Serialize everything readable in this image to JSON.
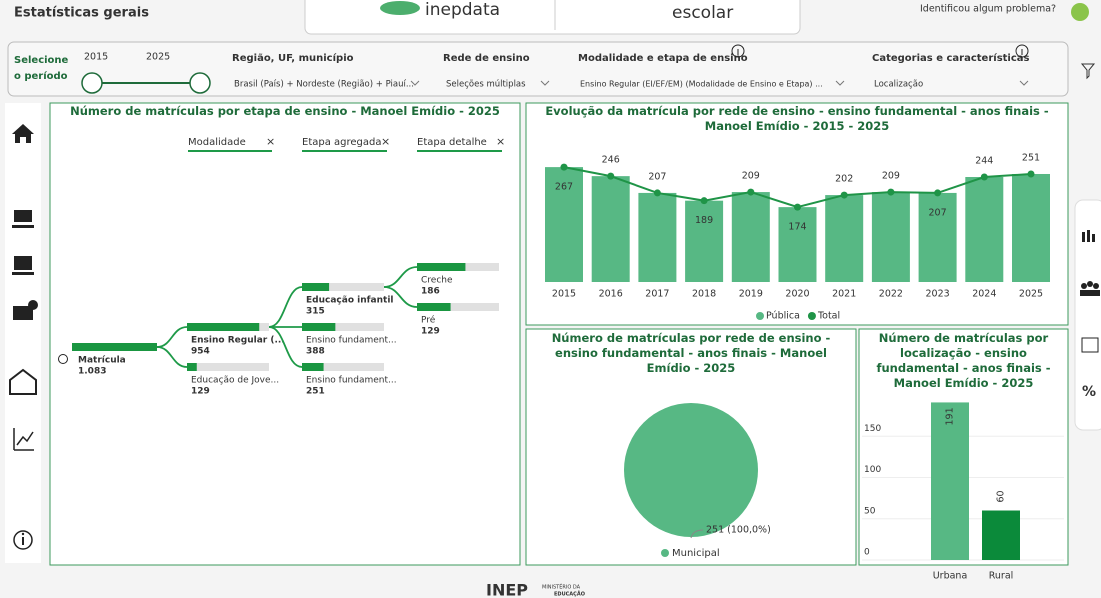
{
  "header": {
    "title": "Estatísticas gerais",
    "logo_left": "inepdata",
    "logo_right": "escolar",
    "feedback": "Identificou algum problema?"
  },
  "filters": {
    "period_label": "Selecione o período",
    "period_start": "2015",
    "period_end": "2025",
    "region_label": "Região, UF, município",
    "region_value": "Brasil (País) + Nordeste (Região) + Piauí...",
    "network_label": "Rede de ensino",
    "network_value": "Seleções múltiplas",
    "stage_label": "Modalidade e etapa de ensino",
    "stage_value": "Ensino Regular (EI/EF/EM) (Modalidade de Ensino e Etapa) ...",
    "category_label": "Categorias e características",
    "category_value": "Localização"
  },
  "tree": {
    "title": "Número de matrículas por etapa de ensino - Manoel Emídio - 2025",
    "columns": [
      "Modalidade",
      "Etapa agregada",
      "Etapa detalhe"
    ],
    "nodes": [
      {
        "label": "Matrícula",
        "value": 1083,
        "value_label": "1.083"
      },
      {
        "label": "Ensino Regular (...",
        "value": 954,
        "parent": 0
      },
      {
        "label": "Educação de Jove...",
        "value": 129,
        "parent": 0
      },
      {
        "label": "Educação infantil",
        "value": 315,
        "parent": 1
      },
      {
        "label": "Ensino fundament...",
        "value": 388,
        "parent": 1
      },
      {
        "label": "Ensino fundament...",
        "value": 251,
        "parent": 1
      },
      {
        "label": "Creche",
        "value": 186,
        "parent": 3
      },
      {
        "label": "Pré",
        "value": 129,
        "parent": 3
      }
    ]
  },
  "chart_data": [
    {
      "type": "combo",
      "title": "Evolução da matrícula por rede de ensino - ensino fundamental - anos finais - Manoel Emídio - 2015 - 2025",
      "categories": [
        "2015",
        "2016",
        "2017",
        "2018",
        "2019",
        "2020",
        "2021",
        "2022",
        "2023",
        "2024",
        "2025"
      ],
      "series": [
        {
          "name": "Pública",
          "type": "bar",
          "color": "#57b884",
          "values": [
            267,
            246,
            207,
            189,
            209,
            174,
            202,
            209,
            207,
            244,
            251
          ]
        },
        {
          "name": "Total",
          "type": "line",
          "color": "#1f9447",
          "values": [
            267,
            246,
            207,
            189,
            209,
            174,
            202,
            209,
            207,
            244,
            251
          ]
        }
      ],
      "ylim": [
        0,
        330
      ]
    },
    {
      "type": "pie",
      "title": "Número de matrículas por rede de ensino - ensino fundamental - anos finais - Manoel Emídio - 2025",
      "categories": [
        "Municipal"
      ],
      "values": [
        251
      ],
      "value_labels": [
        "251 (100,0%)"
      ],
      "colors": [
        "#57b884"
      ]
    },
    {
      "type": "bar",
      "title": "Número de matrículas por localização - ensino fundamental - anos finais - Manoel Emídio - 2025",
      "categories": [
        "Urbana",
        "Rural"
      ],
      "values": [
        191,
        60
      ],
      "colors": [
        "#57b884",
        "#0b8a3a"
      ],
      "ylim": [
        0,
        200
      ],
      "yticks": [
        0,
        50,
        100,
        150
      ],
      "grid": true
    }
  ],
  "nav": {
    "percent": "%"
  },
  "footer": {
    "logo": "INEP",
    "ministry": "MINISTÉRIO DA",
    "ministry2": "EDUCAÇÃO"
  }
}
